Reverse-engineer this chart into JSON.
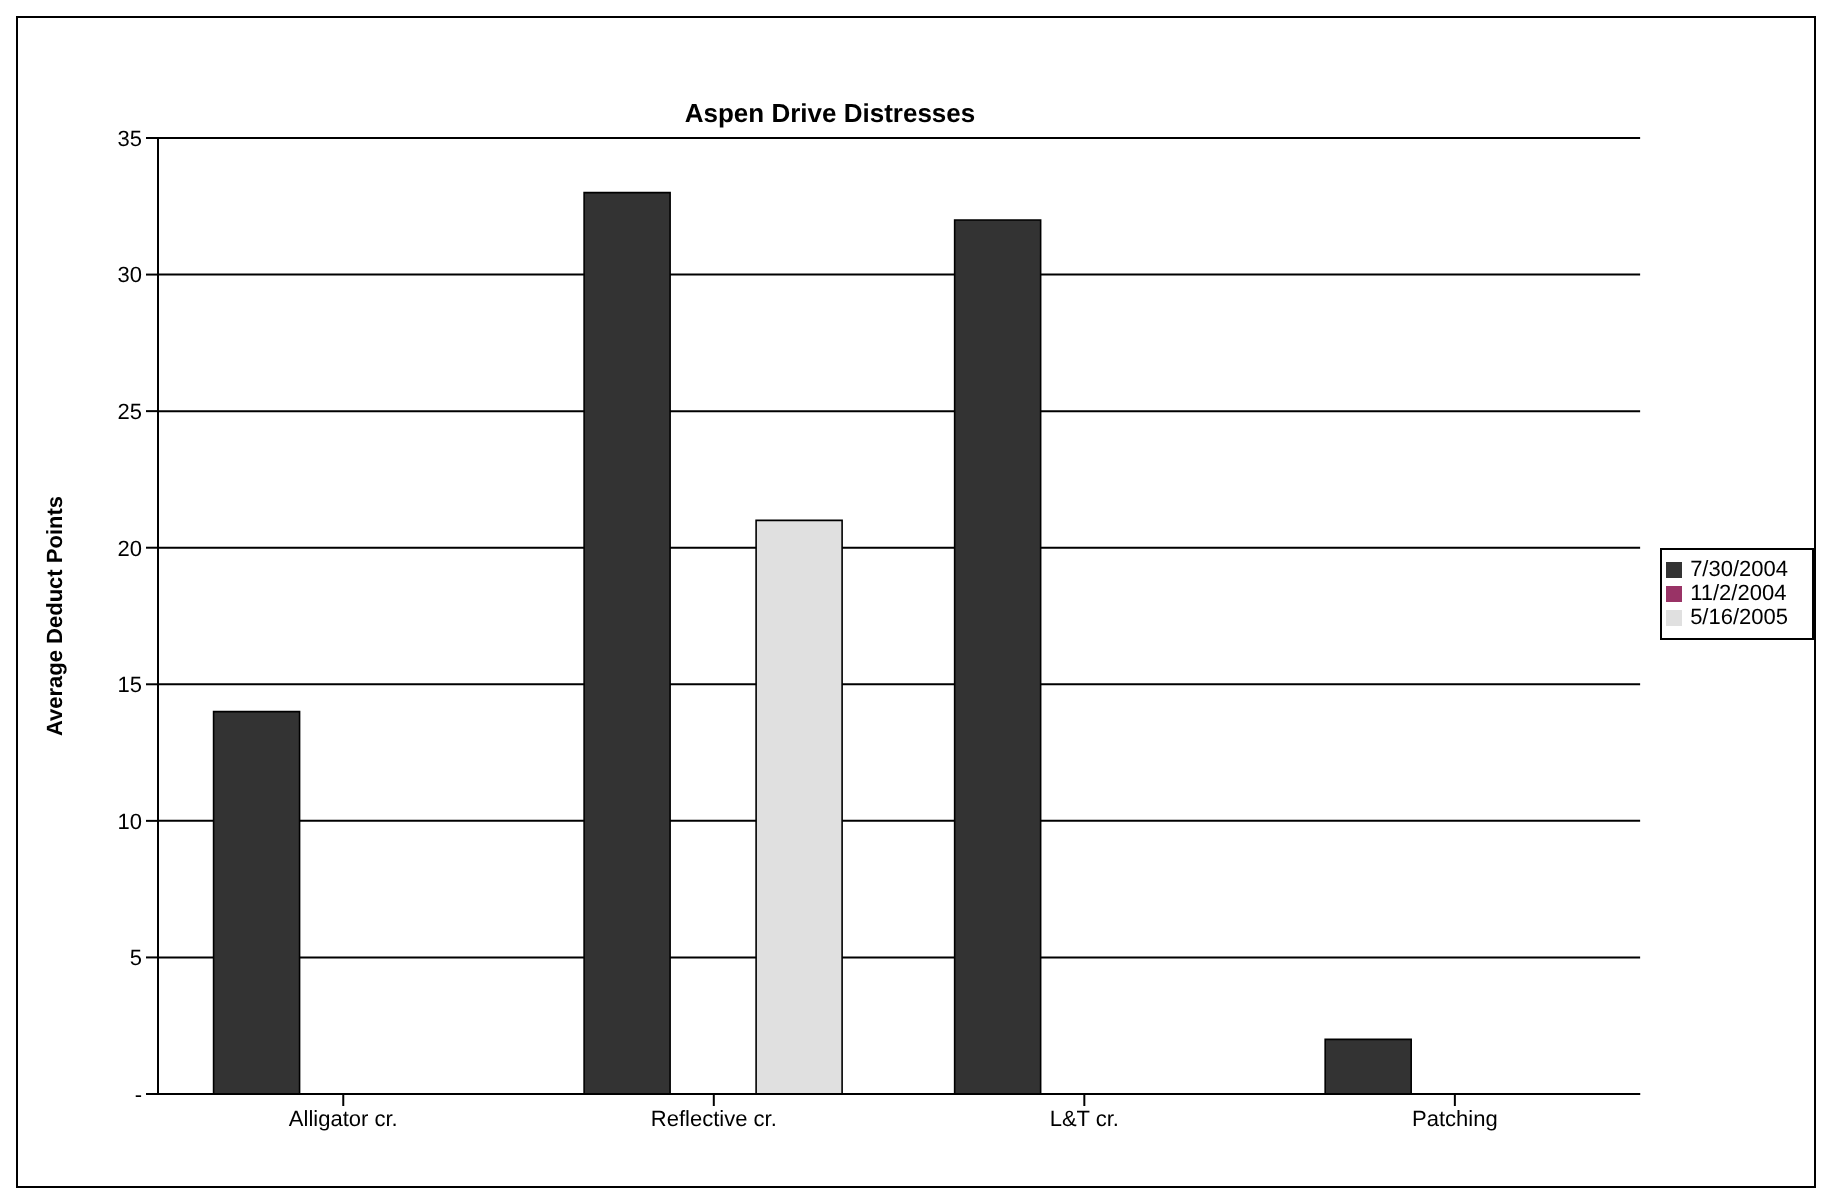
{
  "chart_data": {
    "type": "bar",
    "title": "Aspen Drive Distresses",
    "ylabel": "Average Deduct Points",
    "categories": [
      "Alligator cr.",
      "Reflective cr.",
      "L&T cr.",
      "Patching"
    ],
    "series": [
      {
        "name": "7/30/2004",
        "color": "#333333",
        "values": [
          14,
          33,
          32,
          2
        ]
      },
      {
        "name": "11/2/2004",
        "color": "#993366",
        "values": [
          0,
          0,
          0,
          0
        ]
      },
      {
        "name": "5/16/2005",
        "color": "#e0e0e0",
        "values": [
          0,
          21,
          0,
          0
        ]
      }
    ],
    "ylim": [
      0,
      35
    ],
    "yticks": [
      {
        "value": 0,
        "label": "-"
      },
      5,
      10,
      15,
      20,
      25,
      30,
      35
    ],
    "grid": "y",
    "legend": "right"
  }
}
